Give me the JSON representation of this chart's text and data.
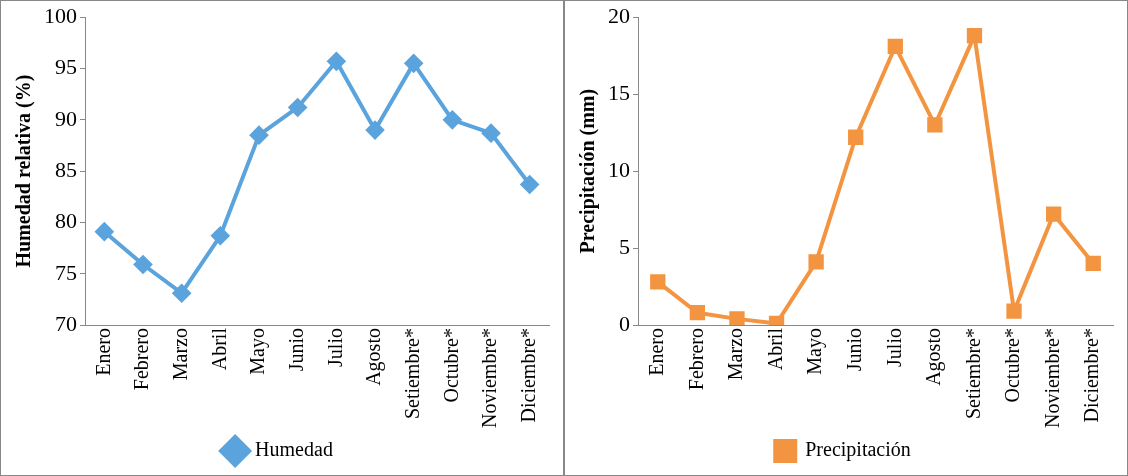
{
  "chart_data": [
    {
      "type": "line",
      "ylabel": "Humedad relativa (%)",
      "categories": [
        "Enero",
        "Febrero",
        "Marzo",
        "Abril",
        "Mayo",
        "Junio",
        "Julio",
        "Agosto",
        "Setiembre*",
        "Octubre*",
        "Noviembre*",
        "Diciembre*"
      ],
      "series": [
        {
          "name": "Humedad",
          "color": "#5ba3dc",
          "values": [
            79.1,
            75.9,
            73.1,
            78.7,
            88.5,
            91.2,
            95.7,
            89.0,
            95.5,
            90.0,
            88.7,
            83.7
          ]
        }
      ],
      "ylim": [
        70,
        100
      ],
      "yticks": [
        70,
        75,
        80,
        85,
        90,
        95,
        100
      ],
      "grid": false,
      "legend": "bottom",
      "marker": "diamond"
    },
    {
      "type": "line",
      "ylabel": "Precipitación (mm)",
      "categories": [
        "Enero",
        "Febrero",
        "Marzo",
        "Abril",
        "Mayo",
        "Junio",
        "Julio",
        "Agosto",
        "Setiembre*",
        "Octubre*",
        "Noviembre*",
        "Diciembre*"
      ],
      "series": [
        {
          "name": "Precipitación",
          "color": "#f39440",
          "values": [
            2.8,
            0.8,
            0.4,
            0.1,
            4.1,
            12.2,
            18.1,
            13.0,
            18.8,
            0.9,
            7.2,
            4.0
          ]
        }
      ],
      "ylim": [
        0,
        20
      ],
      "yticks": [
        0,
        5,
        10,
        15,
        20
      ],
      "grid": false,
      "legend": "bottom",
      "marker": "square"
    }
  ]
}
